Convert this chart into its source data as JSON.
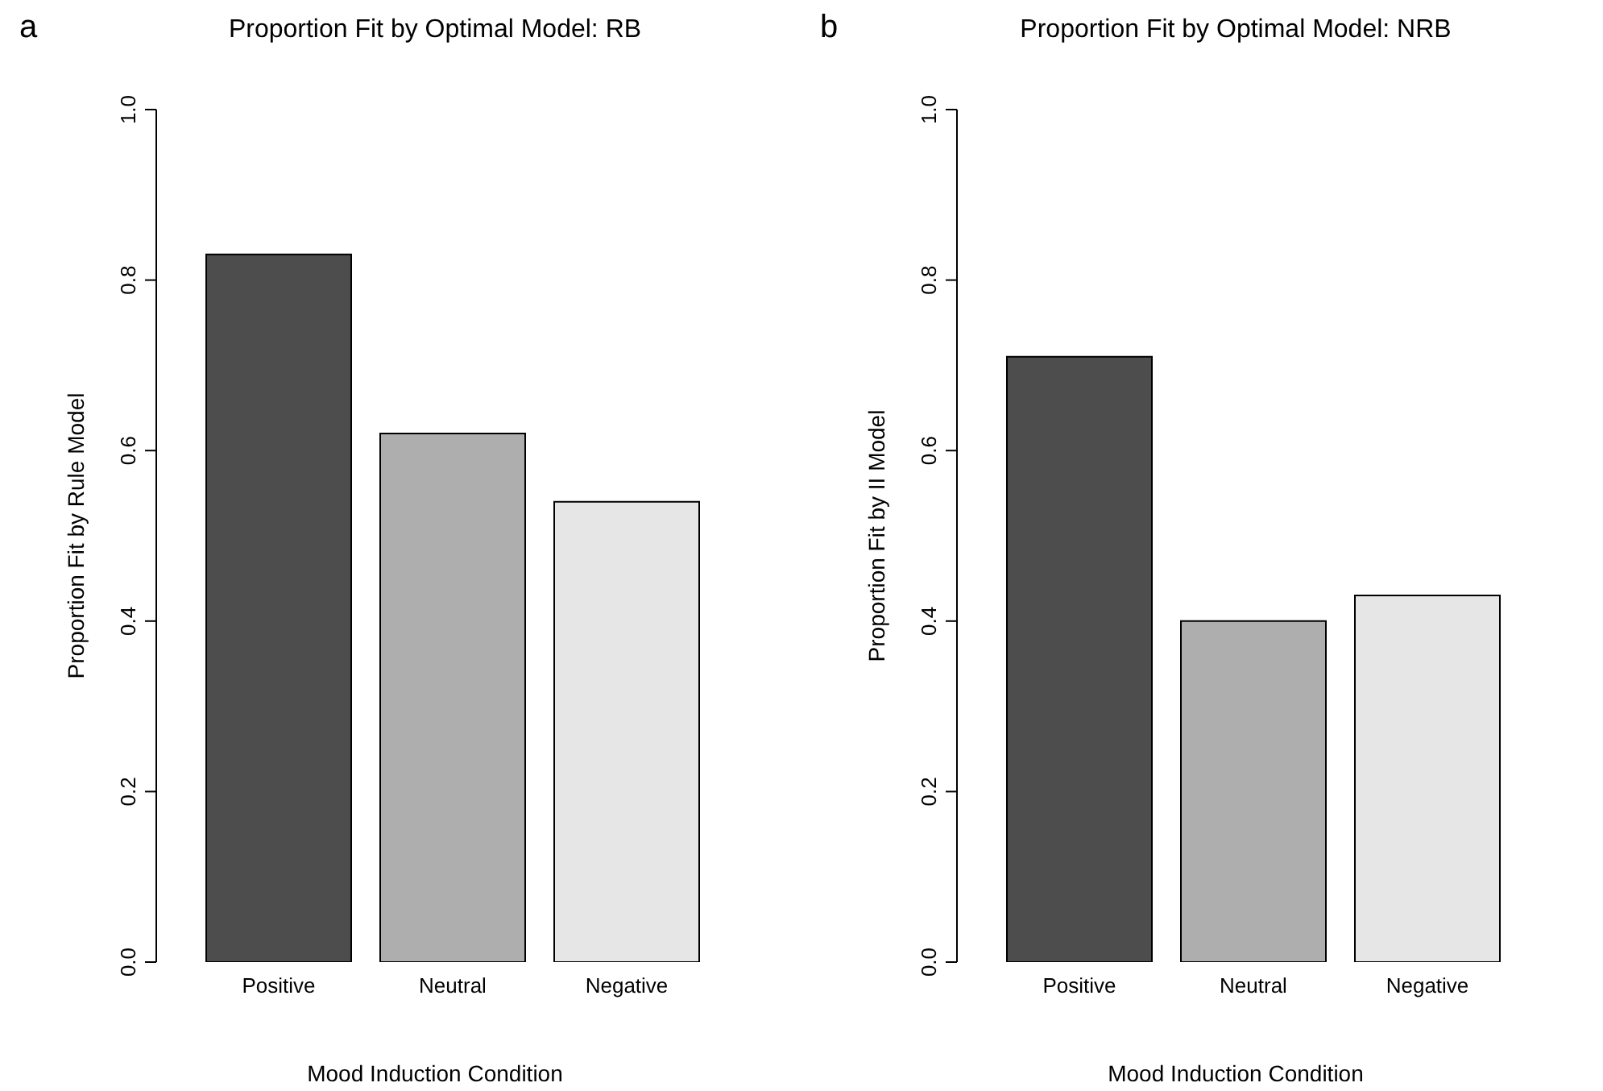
{
  "chart_data": [
    {
      "type": "bar",
      "title": "Proportion Fit by Optimal Model: RB",
      "annotations": [
        "a"
      ],
      "xlabel": "Mood Induction Condition",
      "ylabel": "Proportion Fit by Rule Model",
      "categories": [
        "Positive",
        "Neutral",
        "Negative"
      ],
      "values": [
        0.83,
        0.62,
        0.54
      ],
      "colors": [
        "#4d4d4d",
        "#aeaeae",
        "#e6e6e6"
      ],
      "ylim": [
        0,
        1
      ],
      "yticks": [
        {
          "value": 0,
          "label": "0.0"
        },
        {
          "value": 0.2,
          "label": "0.2"
        },
        {
          "value": 0.4,
          "label": "0.4"
        },
        {
          "value": 0.6,
          "label": "0.6"
        },
        {
          "value": 0.8,
          "label": "0.8"
        },
        {
          "value": 1,
          "label": "1.0"
        }
      ]
    },
    {
      "type": "bar",
      "title": "Proportion Fit by Optimal Model: NRB",
      "annotations": [
        "b"
      ],
      "xlabel": "Mood Induction Condition",
      "ylabel": "Proportion Fit by II Model",
      "categories": [
        "Positive",
        "Neutral",
        "Negative"
      ],
      "values": [
        0.71,
        0.4,
        0.43
      ],
      "colors": [
        "#4d4d4d",
        "#aeaeae",
        "#e6e6e6"
      ],
      "ylim": [
        0,
        1
      ],
      "yticks": [
        {
          "value": 0,
          "label": "0.0"
        },
        {
          "value": 0.2,
          "label": "0.2"
        },
        {
          "value": 0.4,
          "label": "0.4"
        },
        {
          "value": 0.6,
          "label": "0.6"
        },
        {
          "value": 0.8,
          "label": "0.8"
        },
        {
          "value": 1,
          "label": "1.0"
        }
      ]
    }
  ]
}
